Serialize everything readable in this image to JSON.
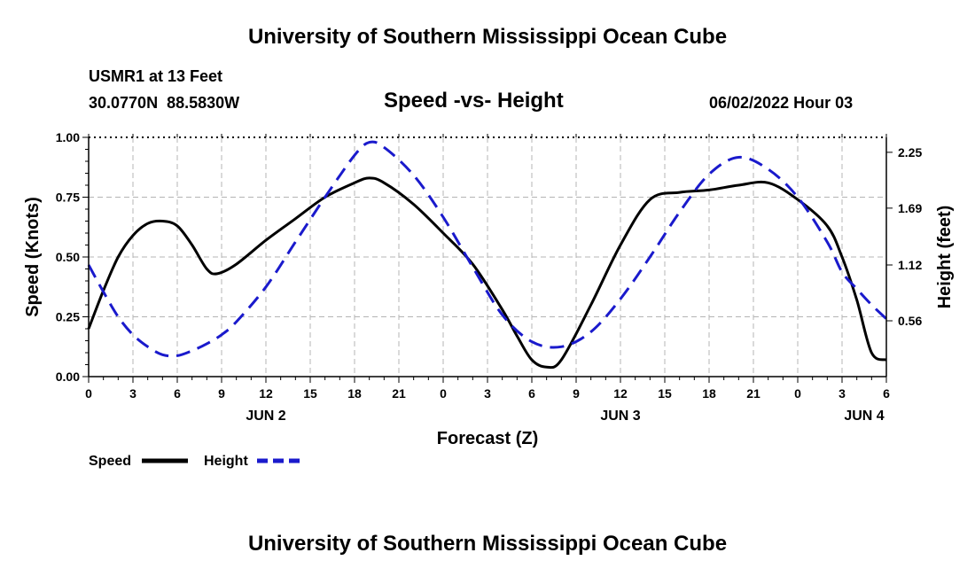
{
  "header": {
    "title": "University of Southern Mississippi Ocean Cube",
    "station": "USMR1 at 13 Feet",
    "coords": "30.0770N  88.5830W",
    "datetime": "06/02/2022 Hour 03",
    "footer_title": "University of Southern Mississippi Ocean Cube"
  },
  "colors": {
    "speed": "#000000",
    "height": "#1a1acc",
    "grid": "#b4b4b4"
  },
  "chart_data": {
    "type": "line",
    "title": "Speed -vs- Height",
    "xlabel": "Forecast (Z)",
    "ylabel": "Speed (Knots)",
    "y2label": "Height (feet)",
    "xlim": [
      0,
      54
    ],
    "ylim": [
      0,
      1
    ],
    "y2lim": [
      0,
      2.4
    ],
    "x_ticks": [
      0,
      3,
      6,
      9,
      12,
      15,
      18,
      21,
      24,
      27,
      30,
      33,
      36,
      39,
      42,
      45,
      48,
      51,
      54
    ],
    "x_tick_labels": [
      "0",
      "3",
      "6",
      "9",
      "12",
      "15",
      "18",
      "21",
      "0",
      "3",
      "6",
      "9",
      "12",
      "15",
      "18",
      "21",
      "0",
      "3",
      "6"
    ],
    "day_labels": [
      {
        "x": 12,
        "label": "JUN 2"
      },
      {
        "x": 36,
        "label": "JUN 3"
      },
      {
        "x": 52.5,
        "label": "JUN 4"
      }
    ],
    "y_ticks": [
      0,
      0.25,
      0.5,
      0.75,
      1.0
    ],
    "y_tick_labels": [
      "0.00",
      "0.25",
      "0.50",
      "0.75",
      "1.00"
    ],
    "y2_ticks": [
      0.56,
      1.12,
      1.69,
      2.25
    ],
    "y2_tick_labels": [
      "0.56",
      "1.12",
      "1.69",
      "2.25"
    ],
    "series": [
      {
        "name": "Speed",
        "axis": "left",
        "style": "solid",
        "x": [
          0,
          1,
          2,
          3,
          4,
          5,
          6,
          7,
          8,
          8.7,
          10,
          12,
          14,
          16,
          18,
          19,
          20,
          22,
          24,
          26,
          28,
          29,
          30,
          31,
          32,
          34,
          36,
          38,
          40,
          42,
          44,
          46,
          48,
          50,
          51,
          52,
          53,
          54
        ],
        "values": [
          0.2,
          0.36,
          0.5,
          0.59,
          0.64,
          0.65,
          0.63,
          0.55,
          0.45,
          0.43,
          0.47,
          0.57,
          0.66,
          0.75,
          0.81,
          0.83,
          0.81,
          0.72,
          0.6,
          0.47,
          0.28,
          0.17,
          0.07,
          0.04,
          0.07,
          0.3,
          0.55,
          0.74,
          0.77,
          0.78,
          0.8,
          0.81,
          0.74,
          0.63,
          0.5,
          0.32,
          0.1,
          0.07
        ]
      },
      {
        "name": "Height",
        "axis": "right",
        "style": "dashed",
        "x": [
          0,
          1,
          2,
          3,
          4,
          5,
          6,
          7,
          8,
          9,
          10,
          12,
          14,
          16,
          18,
          19,
          20,
          22,
          24,
          26,
          28,
          30,
          32,
          34,
          36,
          38,
          40,
          42,
          44,
          46,
          48,
          50,
          51,
          52,
          53,
          54
        ],
        "values": [
          1.12,
          0.85,
          0.6,
          0.42,
          0.3,
          0.22,
          0.21,
          0.26,
          0.33,
          0.42,
          0.55,
          0.9,
          1.35,
          1.8,
          2.22,
          2.35,
          2.3,
          2.02,
          1.6,
          1.1,
          0.62,
          0.35,
          0.3,
          0.45,
          0.78,
          1.2,
          1.65,
          2.03,
          2.2,
          2.08,
          1.8,
          1.35,
          1.05,
          0.88,
          0.72,
          0.58
        ]
      }
    ],
    "legend": [
      {
        "label": "Speed",
        "series": "Speed"
      },
      {
        "label": "Height",
        "series": "Height"
      }
    ]
  }
}
